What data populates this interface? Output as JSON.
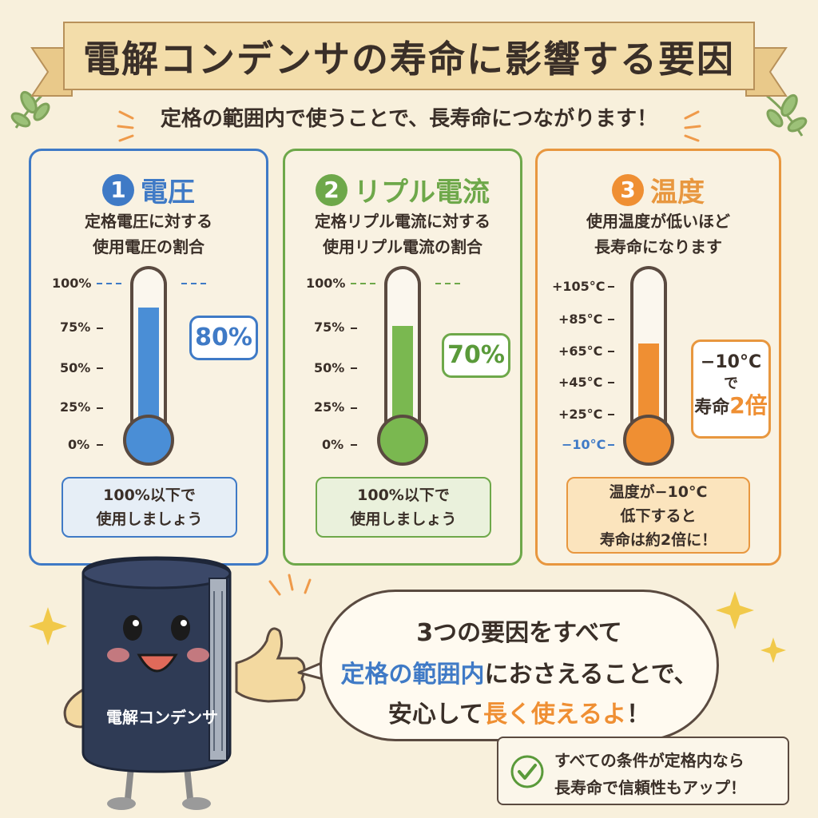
{
  "title": "電解コンデンサの寿命に影響する要因",
  "subtitle": "定格の範囲内で使うことで、長寿命につながります！",
  "panels": [
    {
      "number": "1",
      "heading": "電圧",
      "desc_line1": "定格電圧に対する",
      "desc_line2": "使用電圧の割合",
      "ticks": [
        "100%",
        "75%",
        "50%",
        "25%",
        "0%"
      ],
      "value": "80%",
      "level": 0.8,
      "note_line1": "100%以下で",
      "note_line2": "使用しましょう",
      "color": "#3f7ac6",
      "fill_color": "#4a8ed6"
    },
    {
      "number": "2",
      "heading": "リプル電流",
      "desc_line1": "定格リプル電流に対する",
      "desc_line2": "使用リプル電流の割合",
      "ticks": [
        "100%",
        "75%",
        "50%",
        "25%",
        "0%"
      ],
      "value": "70%",
      "level": 0.7,
      "note_line1": "100%以下で",
      "note_line2": "使用しましょう",
      "color": "#6ea84a",
      "fill_color": "#7ab850"
    },
    {
      "number": "3",
      "heading": "温度",
      "desc_line1": "使用温度が低いほど",
      "desc_line2": "長寿命になります",
      "ticks": [
        "+105°C",
        "+85°C",
        "+65°C",
        "+45°C",
        "+25°C",
        "−10°C"
      ],
      "callout_line1": "−10°C",
      "callout_line2": "で",
      "callout_line3a": "寿命",
      "callout_line3b": "2倍",
      "level": 0.6,
      "note_line1": "温度が−10°C",
      "note_line2": "低下すると",
      "note_line3": "寿命は約2倍に！",
      "color": "#e8973f",
      "fill_color": "#ef8f33"
    }
  ],
  "mascot_label": "電解コンデンサ",
  "speech": {
    "line1": "3つの要因をすべて",
    "line2_blue": "定格の範囲内",
    "line2_rest": "におさえることで、",
    "line3_a": "安心して",
    "line3_orange": "長く使えるよ",
    "line3_end": "！"
  },
  "check_note": {
    "line1": "すべての条件が定格内なら",
    "line2": "長寿命で信頼性もアップ！"
  },
  "colors": {
    "background": "#f8f0dc",
    "ribbon": "#f3ddaa",
    "blue": "#3f7ac6",
    "green": "#6ea84a",
    "orange": "#e8973f",
    "leaf": "#8fb36a"
  }
}
